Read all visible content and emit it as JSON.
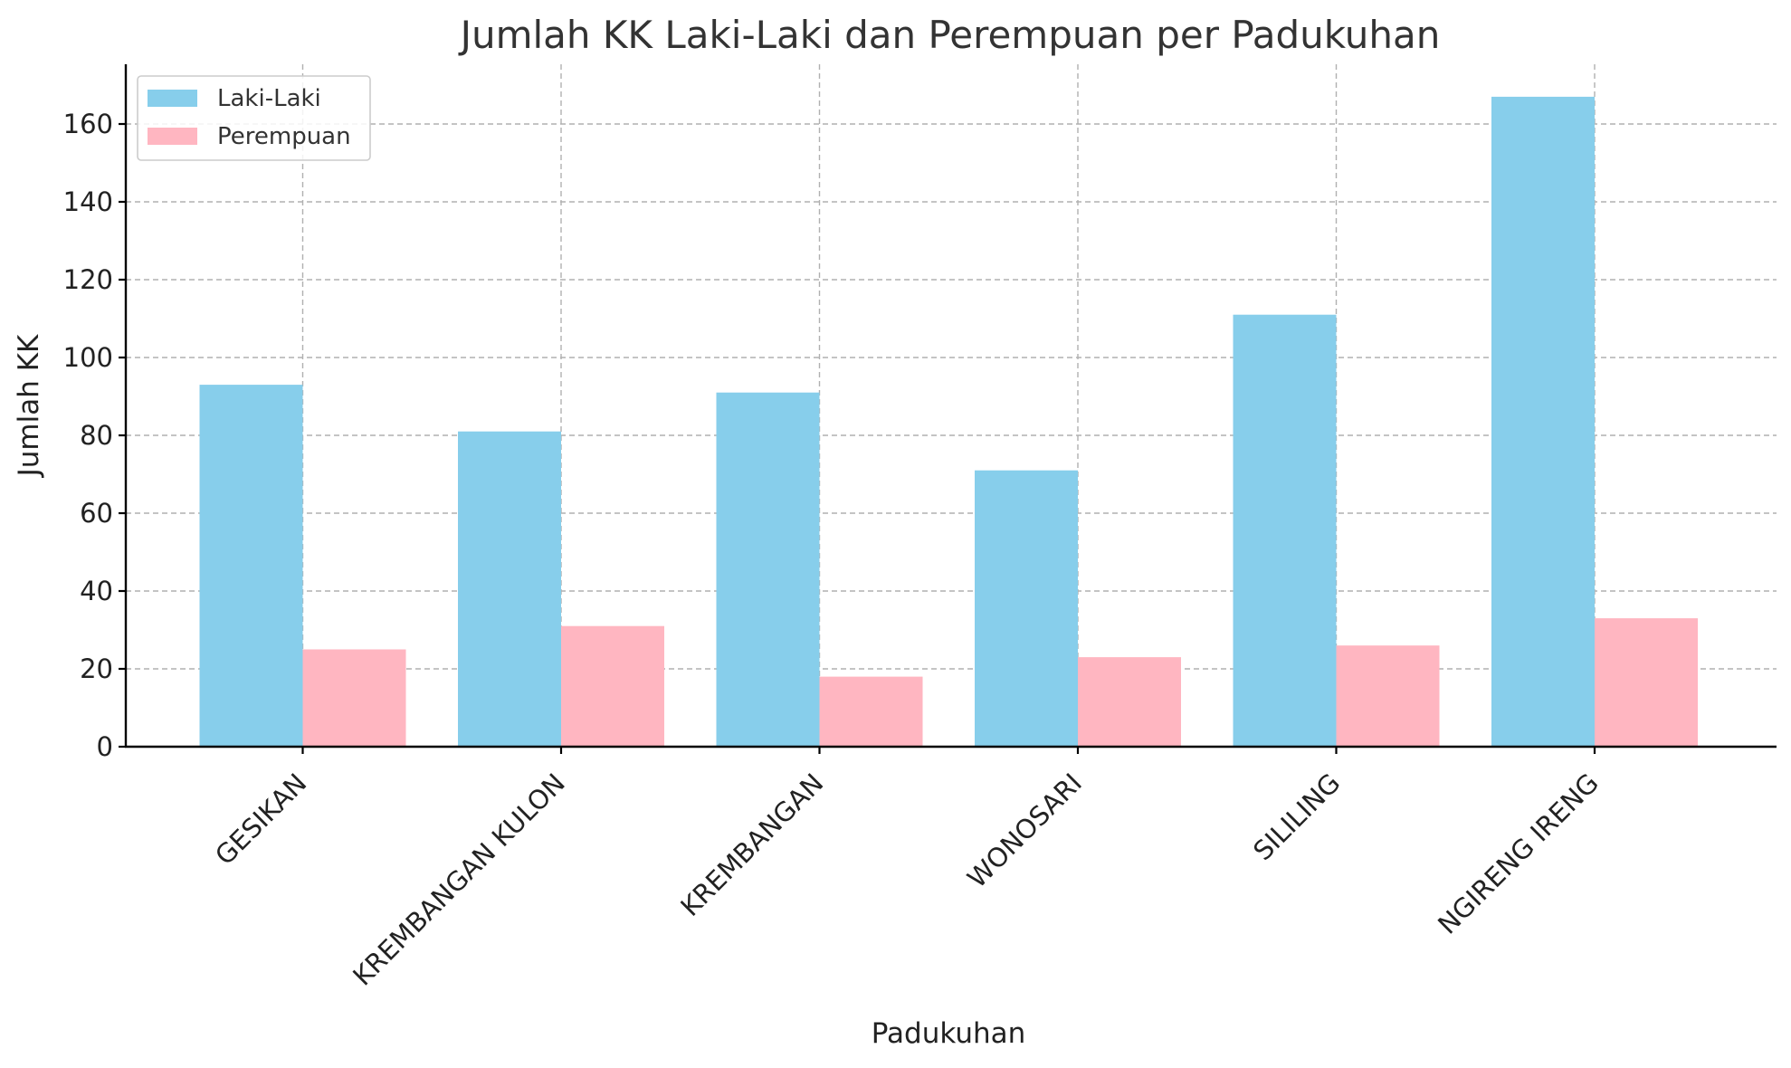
{
  "chart_data": {
    "type": "bar",
    "title": "Jumlah KK Laki-Laki dan Perempuan per Padukuhan",
    "xlabel": "Padukuhan",
    "ylabel": "Jumlah KK",
    "categories": [
      "GESIKAN",
      "KREMBANGAN KULON",
      "KREMBANGAN",
      "WONOSARI",
      "SILILING",
      "NGIRENG IRENG"
    ],
    "series": [
      {
        "name": "Laki-Laki",
        "color": "#87CEEB",
        "values": [
          93,
          81,
          91,
          71,
          111,
          167
        ]
      },
      {
        "name": "Perempuan",
        "color": "#FFB6C1",
        "values": [
          25,
          31,
          18,
          23,
          26,
          33
        ]
      }
    ],
    "ylim": [
      0,
      175
    ],
    "yticks": [
      0,
      20,
      40,
      60,
      80,
      100,
      120,
      140,
      160
    ],
    "grid": true,
    "legend_position": "top-left"
  }
}
